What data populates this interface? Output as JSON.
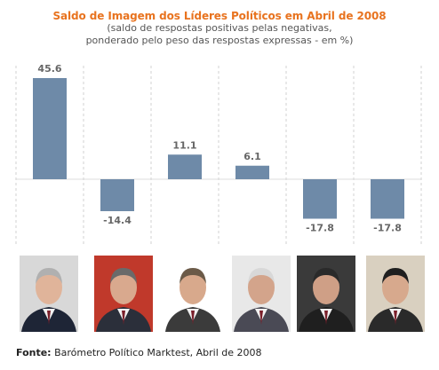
{
  "title": "Saldo de Imagem dos Líderes Políticos em Abril de 2008",
  "subtitle_line1": "(saldo de respostas positivas pelas negativas,",
  "subtitle_line2": "ponderado pelo peso das respostas expressas - em %)",
  "colors": {
    "title": "#e8731f",
    "bar": "#6e8aa8",
    "grid": "#d0d0d0",
    "value_label": "#666666"
  },
  "chart_data": {
    "type": "bar",
    "categories": [
      "",
      "",
      "",
      "",
      "",
      ""
    ],
    "values": [
      45.6,
      -14.4,
      11.1,
      6.1,
      -17.8,
      -17.8
    ],
    "value_labels": [
      "45.6",
      "-14.4",
      "11.1",
      "6.1",
      "-17.8",
      "-17.8"
    ],
    "ylim": [
      -17.8,
      45.6
    ],
    "grid": "vertical dashed separators"
  },
  "photos": [
    "leader-1-photo",
    "leader-2-photo",
    "leader-3-photo",
    "leader-4-photo",
    "leader-5-photo",
    "leader-6-photo"
  ],
  "source_bold": "Fonte:",
  "source_text": " Barómetro Político Marktest, Abril de 2008"
}
